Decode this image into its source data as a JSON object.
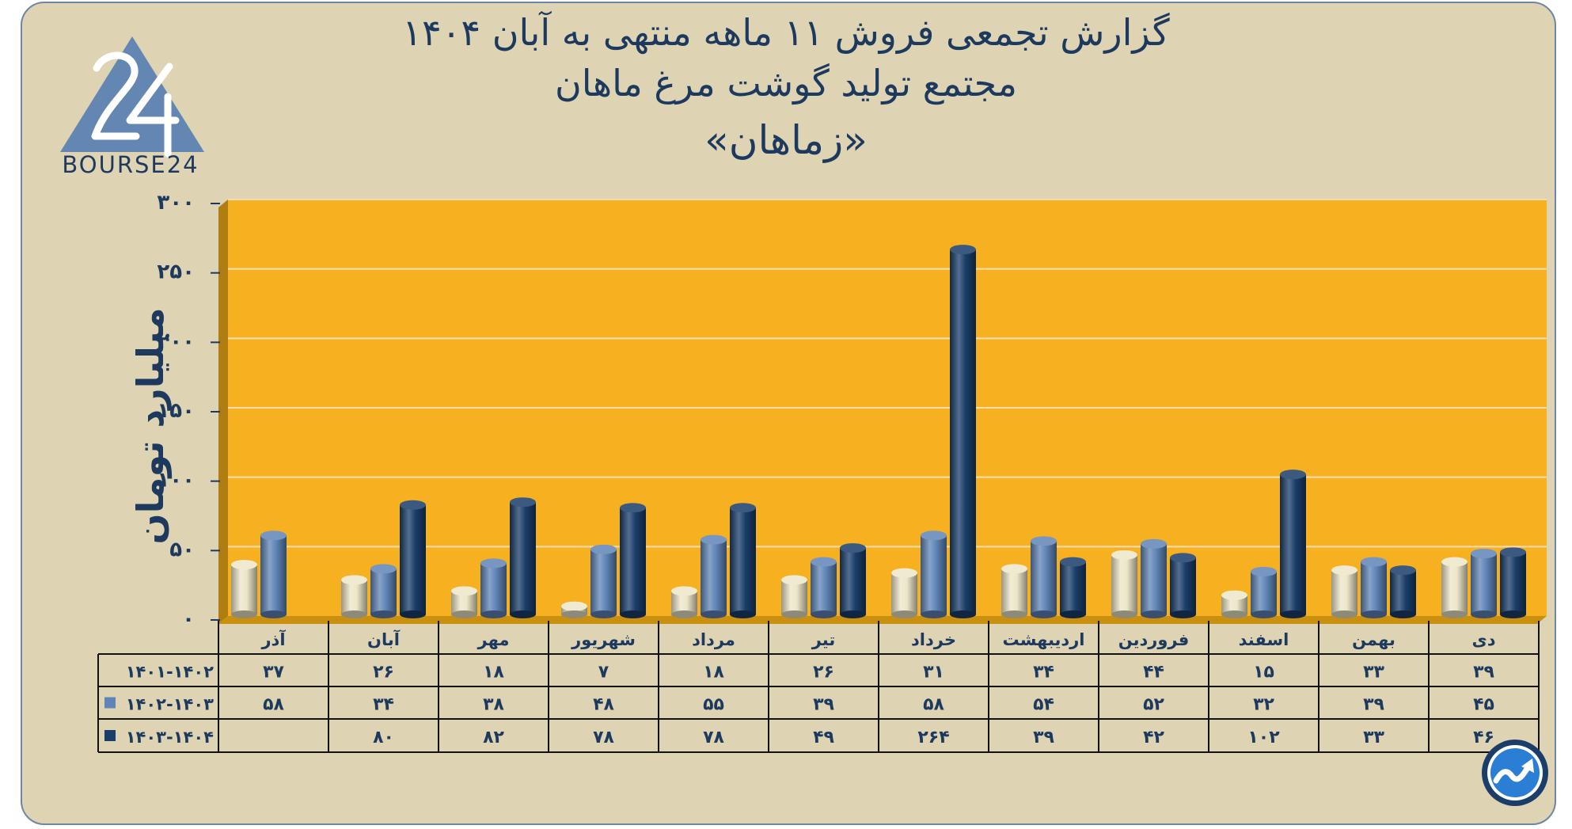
{
  "header": {
    "title_line1": "گزارش تجمعی فروش ۱۱ ماهه منتهی به آبان ۱۴۰۴",
    "title_line2": "مجتمع تولید گوشت مرغ ماهان",
    "title_line3": "«زماهان»"
  },
  "logo": {
    "text": "BOURSE24",
    "mark": "24",
    "icon": "bourse24-triangle-logo"
  },
  "badge": {
    "icon": "trend-arrow-badge-icon"
  },
  "colors": {
    "background": "#ded4b4",
    "plot_background": "#f7b120",
    "series_1401_1402": "#ece6c8",
    "series_1402_1403": "#5f84b6",
    "series_1403_1404": "#1a3d69",
    "text": "#1d3a5e"
  },
  "chart_data": {
    "type": "bar",
    "title": "گزارش تجمعی فروش ۱۱ ماهه منتهی به آبان ۱۴۰۴",
    "subtitle": "مجتمع تولید گوشت مرغ ماهان",
    "ylabel": "میلیارد تومان",
    "xlabel": "",
    "ylim": [
      0,
      300
    ],
    "yticks": [
      "۰",
      "۵۰",
      "۱۰۰",
      "۱۵۰",
      "۲۰۰",
      "۲۵۰",
      "۳۰۰"
    ],
    "ytick_values": [
      0,
      50,
      100,
      150,
      200,
      250,
      300
    ],
    "grid": true,
    "legend": "data-table",
    "categories": [
      "دی",
      "بهمن",
      "اسفند",
      "فروردین",
      "اردیبهشت",
      "خرداد",
      "تیر",
      "مرداد",
      "شهریور",
      "مهر",
      "آبان",
      "آذر"
    ],
    "series": [
      {
        "name": "۱۴۰۱-۱۴۰۲",
        "values": [
          39,
          33,
          15,
          44,
          34,
          31,
          26,
          18,
          7,
          18,
          26,
          37
        ],
        "labels": [
          "۳۹",
          "۳۳",
          "۱۵",
          "۴۴",
          "۳۴",
          "۳۱",
          "۲۶",
          "۱۸",
          "۷",
          "۱۸",
          "۲۶",
          "۳۷"
        ]
      },
      {
        "name": "۱۴۰۲-۱۴۰۳",
        "values": [
          45,
          39,
          32,
          52,
          54,
          58,
          39,
          55,
          48,
          38,
          34,
          58
        ],
        "labels": [
          "۴۵",
          "۳۹",
          "۳۲",
          "۵۲",
          "۵۴",
          "۵۸",
          "۳۹",
          "۵۵",
          "۴۸",
          "۳۸",
          "۳۴",
          "۵۸"
        ]
      },
      {
        "name": "۱۴۰۳-۱۴۰۴",
        "values": [
          46,
          33,
          102,
          42,
          39,
          264,
          49,
          78,
          78,
          82,
          80,
          null
        ],
        "labels": [
          "۴۶",
          "۳۳",
          "۱۰۲",
          "۴۲",
          "۳۹",
          "۲۶۴",
          "۴۹",
          "۷۸",
          "۷۸",
          "۸۲",
          "۸۰",
          ""
        ]
      }
    ]
  }
}
